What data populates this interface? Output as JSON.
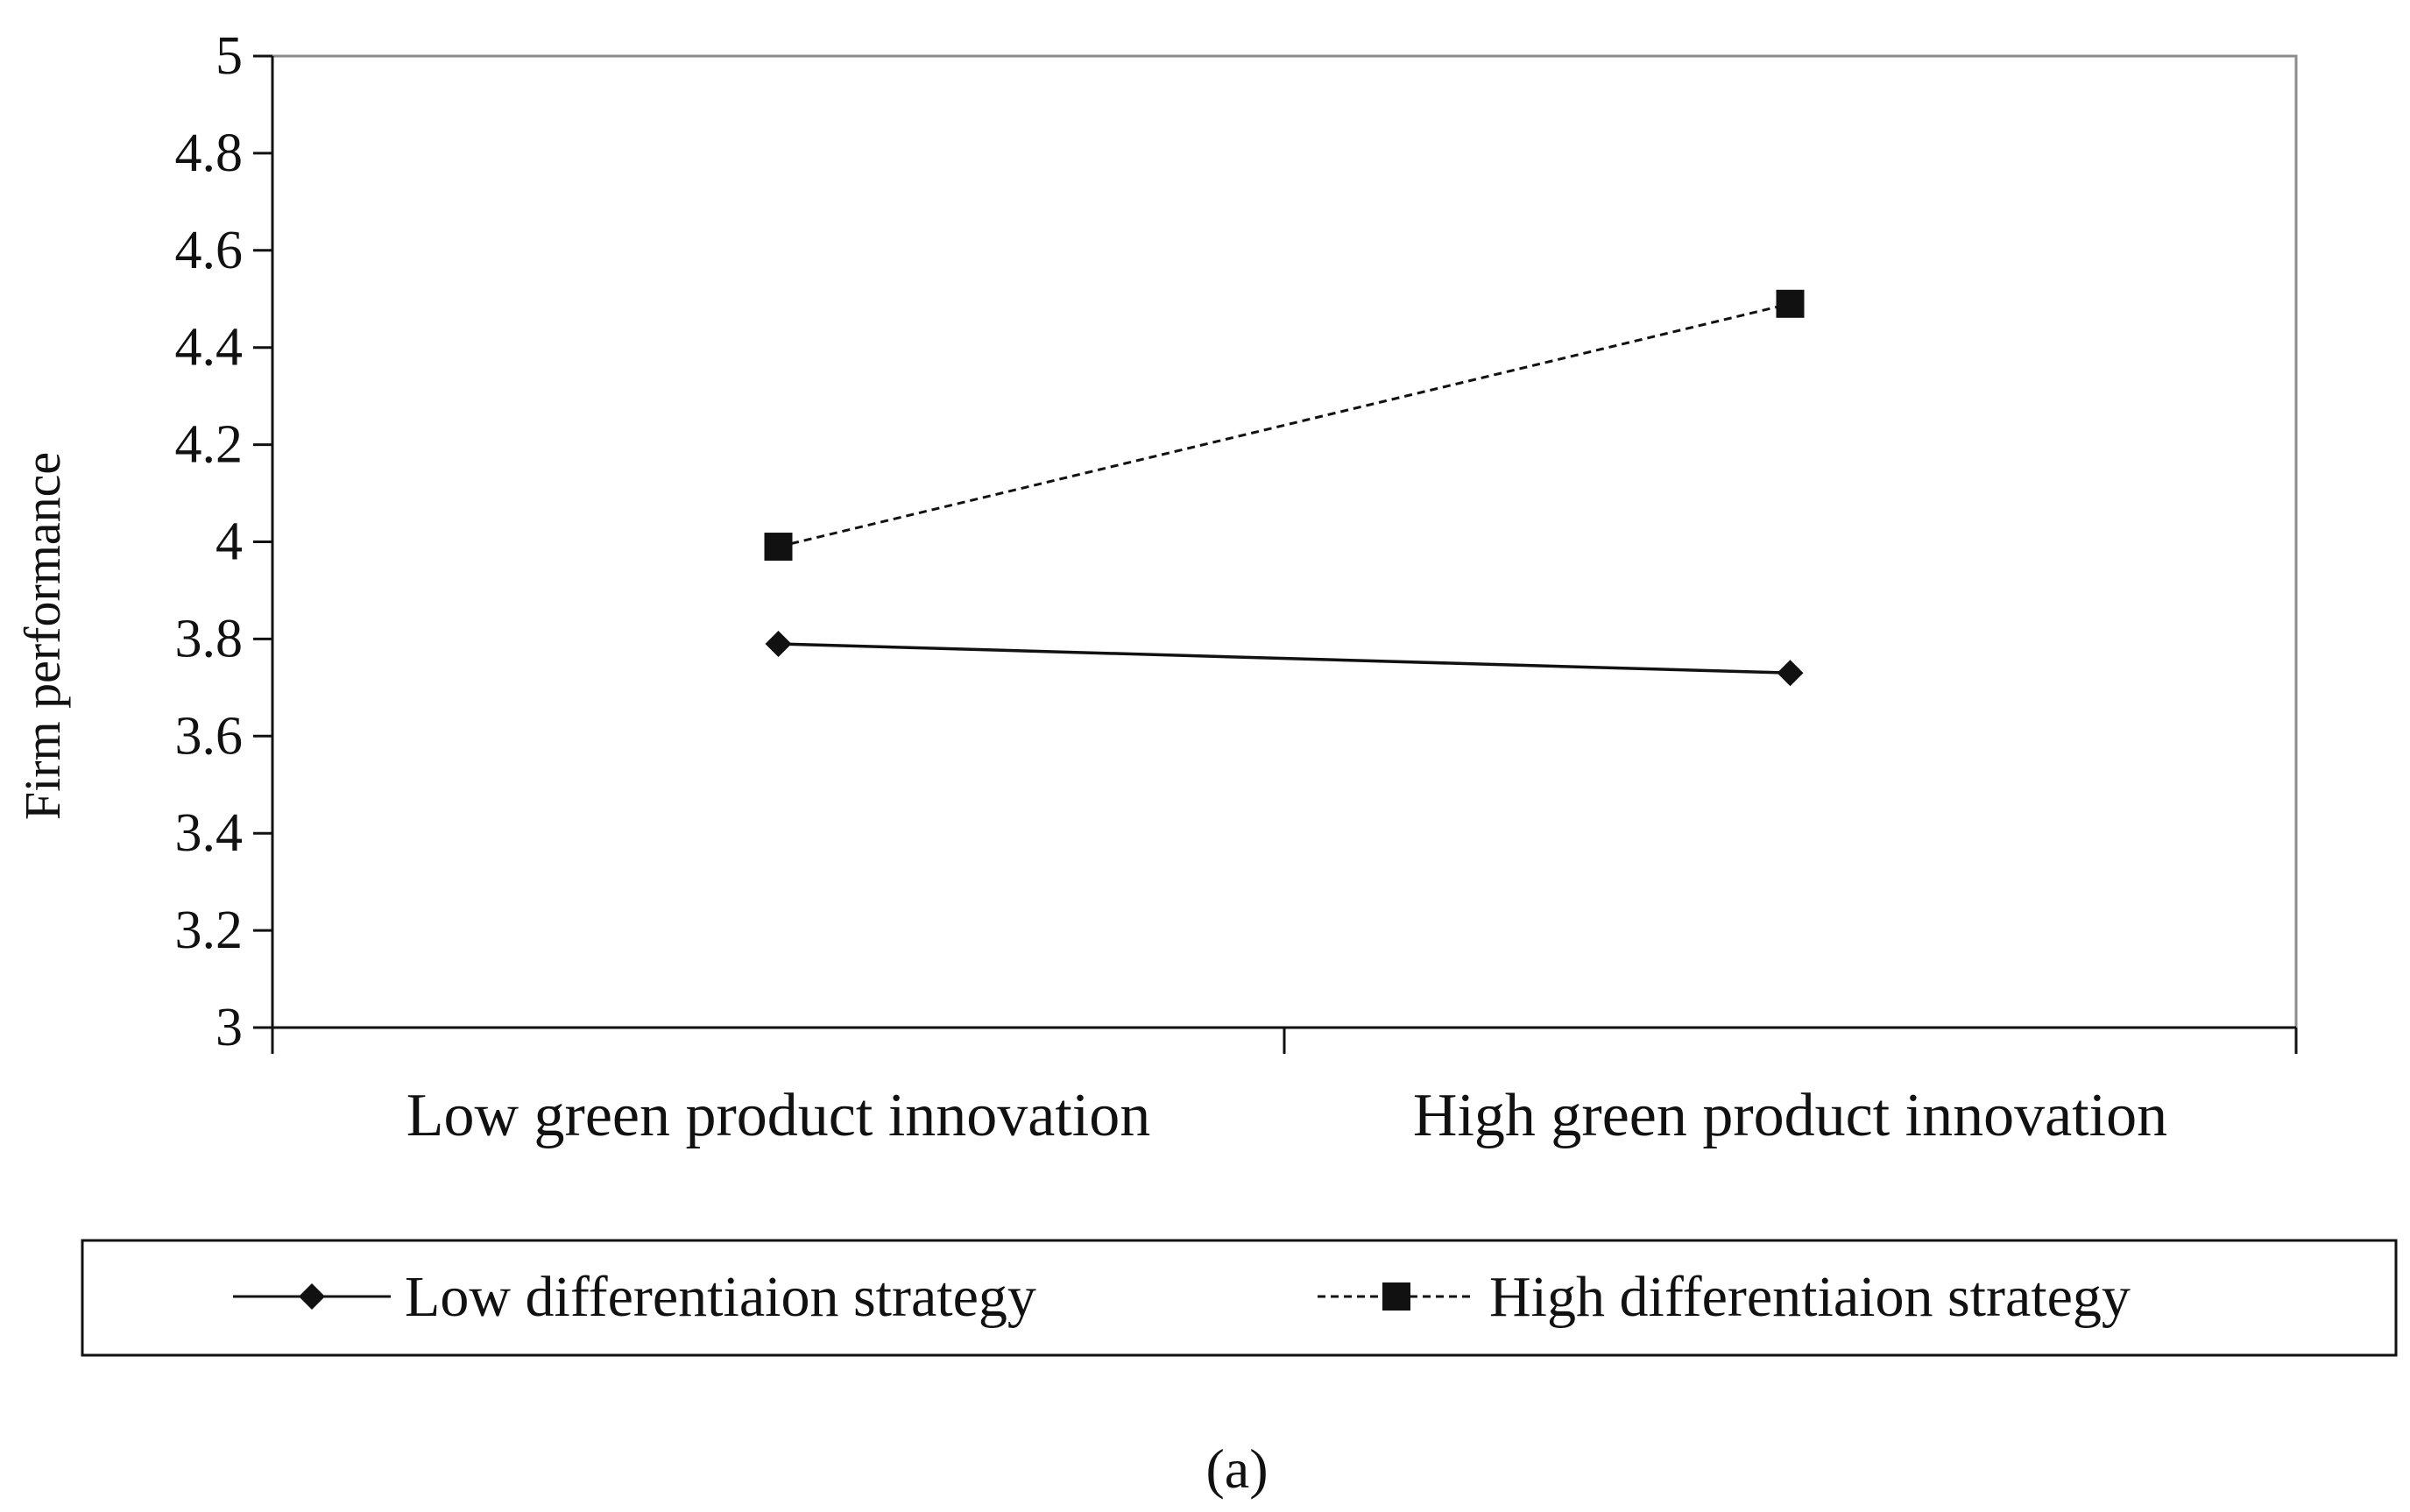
{
  "chart_data": {
    "type": "line",
    "title": "",
    "caption": "(a)",
    "xlabel": "",
    "ylabel": "Firm performance",
    "categories": [
      "Low green product innovation",
      "High green product innovation"
    ],
    "ylim": [
      3,
      5
    ],
    "yticks": [
      "3",
      "3.2",
      "3.4",
      "3.6",
      "3.8",
      "4",
      "4.2",
      "4.4",
      "4.6",
      "4.8",
      "5"
    ],
    "grid": false,
    "legend_position": "bottom",
    "series": [
      {
        "name": "Low differentiaion strategy",
        "values": [
          3.79,
          3.73
        ],
        "line_style": "solid",
        "marker": "diamond",
        "color": "#111111"
      },
      {
        "name": "High differentiaion strategy",
        "values": [
          3.99,
          4.49
        ],
        "line_style": "dashed",
        "marker": "square",
        "color": "#111111"
      }
    ]
  }
}
